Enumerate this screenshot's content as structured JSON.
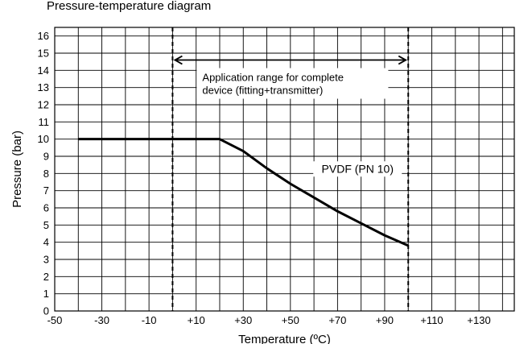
{
  "top_caption": "Pressure-temperature diagram",
  "chart_data": {
    "type": "line",
    "title": "Pressure-temperature diagram",
    "xlabel": "Temperature (ºC)",
    "ylabel": "Pressure (bar)",
    "xlim": [
      -50,
      145
    ],
    "ylim": [
      0,
      16.5
    ],
    "x_ticks": [
      -50,
      -30,
      -10,
      10,
      30,
      50,
      70,
      90,
      110,
      130
    ],
    "x_tick_labels": [
      "-50",
      "-30",
      "-10",
      "+10",
      "+30",
      "+50",
      "+70",
      "+90",
      "+110",
      "+130"
    ],
    "y_ticks": [
      0,
      1,
      2,
      3,
      4,
      5,
      6,
      7,
      8,
      9,
      10,
      11,
      12,
      13,
      14,
      15,
      16
    ],
    "grid": true,
    "series": [
      {
        "name": "PVDF (PN 10)",
        "x": [
          -40,
          20,
          30,
          40,
          50,
          60,
          70,
          80,
          90,
          100
        ],
        "y": [
          10,
          10,
          9.3,
          8.3,
          7.4,
          6.6,
          5.8,
          5.1,
          4.4,
          3.8
        ]
      }
    ],
    "reference_lines": [
      {
        "axis": "x",
        "value": 0,
        "style": "dashed"
      },
      {
        "axis": "x",
        "value": 100,
        "style": "dashed"
      }
    ],
    "annotations": [
      {
        "type": "range_arrow",
        "x_from": 0,
        "x_to": 100,
        "y": 14.6,
        "lines": [
          "Application range for complete",
          "device (fitting+transmitter)"
        ]
      }
    ]
  }
}
